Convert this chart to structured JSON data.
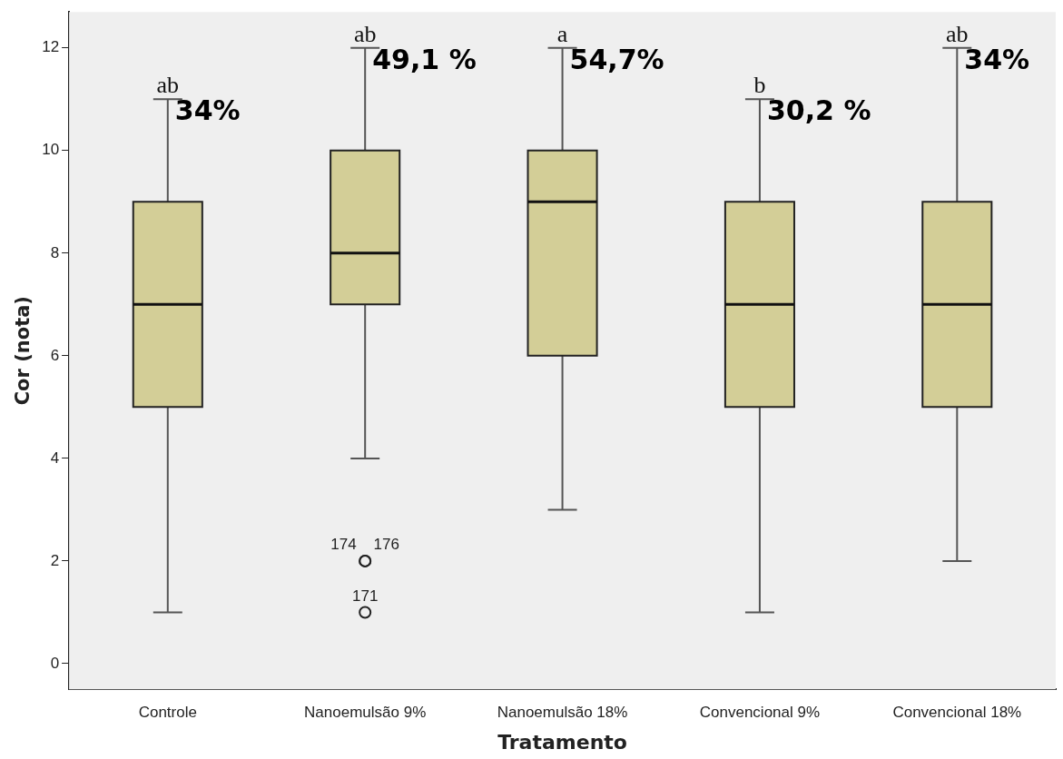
{
  "chart_data": {
    "type": "box",
    "xlabel": "Tratamento",
    "ylabel": "Cor (nota)",
    "categories": [
      "Controle",
      "Nanoemulsão 9%",
      "Nanoemulsão 18%",
      "Convencional 9%",
      "Convencional 18%"
    ],
    "color": "#d3ce97",
    "boxes": [
      {
        "low": 1,
        "q1": 5,
        "median": 7,
        "q3": 9,
        "high": 11
      },
      {
        "low": 4,
        "q1": 7,
        "median": 8,
        "q3": 10,
        "high": 12
      },
      {
        "low": 3,
        "q1": 6,
        "median": 9,
        "q3": 10,
        "high": 12
      },
      {
        "low": 1,
        "q1": 5,
        "median": 7,
        "q3": 9,
        "high": 11
      },
      {
        "low": 2,
        "q1": 5,
        "median": 7,
        "q3": 9,
        "high": 12
      }
    ],
    "series": [
      {
        "type": "scatter",
        "x": [
          "Nanoemulsão 9%",
          "Nanoemulsão 9%",
          "Nanoemulsão 9%"
        ],
        "values": [
          2,
          2,
          1
        ],
        "color": "#222222",
        "marker": "circle"
      }
    ],
    "ylim": [
      -0.5,
      12.7
    ],
    "yticks": [
      0,
      2,
      4,
      6,
      8,
      10,
      12
    ],
    "grid": false,
    "legend": false,
    "annotations": [
      {
        "text": "ab",
        "x": "Controle",
        "y": 11
      },
      {
        "text": "34%",
        "x": "Controle",
        "y": 11
      },
      {
        "text": "ab",
        "x": "Nanoemulsão 9%",
        "y": 12
      },
      {
        "text": "49,1 %",
        "x": "Nanoemulsão 9%",
        "y": 12
      },
      {
        "text": "a",
        "x": "Nanoemulsão 18%",
        "y": 12
      },
      {
        "text": "54,7%",
        "x": "Nanoemulsão 18%",
        "y": 12
      },
      {
        "text": "b",
        "x": "Convencional 9%",
        "y": 11
      },
      {
        "text": "30,2 %",
        "x": "Convencional 9%",
        "y": 11
      },
      {
        "text": "ab",
        "x": "Convencional 18%",
        "y": 12
      },
      {
        "text": "34%",
        "x": "Convencional 18%",
        "y": 12
      },
      {
        "text": "174    176",
        "x": "Nanoemulsão 9%",
        "y": 2
      },
      {
        "text": "171",
        "x": "Nanoemulsão 9%",
        "y": 1
      }
    ]
  }
}
